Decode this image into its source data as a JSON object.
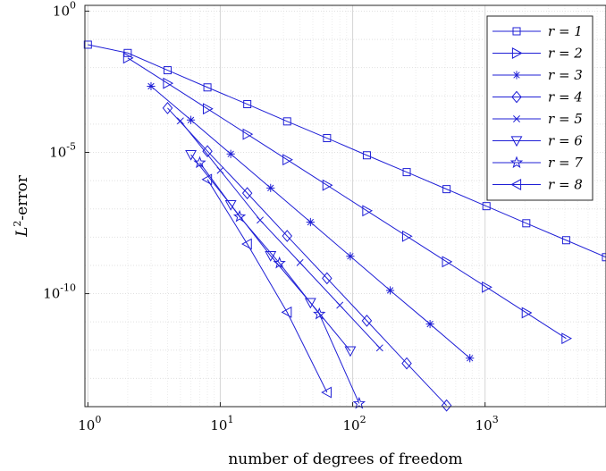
{
  "chart_data": {
    "type": "line",
    "xlabel": "number of degrees of freedom",
    "ylabel_main": "L",
    "ylabel_sup": "2",
    "ylabel_rest": "-error",
    "x_scale": "log",
    "y_scale": "log",
    "xlim": [
      0.95,
      8192
    ],
    "ylim": [
      1e-14,
      1.6
    ],
    "grid": true,
    "legend_position": "top-right",
    "line_color": "#1f1fd6",
    "x_ticks": [
      {
        "value": 1,
        "base": "10",
        "exp": "0"
      },
      {
        "value": 10,
        "base": "10",
        "exp": "1"
      },
      {
        "value": 100,
        "base": "10",
        "exp": "2"
      },
      {
        "value": 1000,
        "base": "10",
        "exp": "3"
      }
    ],
    "y_ticks": [
      {
        "value": 1,
        "base": "10",
        "exp": "0"
      },
      {
        "value": 1e-05,
        "base": "10",
        "exp": "-5"
      },
      {
        "value": 1e-10,
        "base": "10",
        "exp": "-10"
      }
    ],
    "series": [
      {
        "name": "r = 1",
        "marker": "square",
        "x": [
          1,
          2,
          4,
          8,
          16,
          32,
          64,
          128,
          256,
          512,
          1024,
          2048,
          4096,
          8192
        ],
        "y": [
          0.065,
          0.033,
          0.0081,
          0.002,
          0.00051,
          0.000125,
          3.2e-05,
          7.9e-06,
          2e-06,
          5e-07,
          1.25e-07,
          3.1e-08,
          7.8e-09,
          1.95e-09
        ]
      },
      {
        "name": "r = 2",
        "marker": "triangle-right",
        "x": [
          2,
          4,
          8,
          16,
          32,
          64,
          128,
          256,
          512,
          1024,
          2048,
          4096
        ],
        "y": [
          0.022,
          0.0028,
          0.00035,
          4.4e-05,
          5.5e-06,
          6.9e-07,
          8.6e-08,
          1.08e-08,
          1.35e-09,
          1.7e-10,
          2.1e-11,
          2.6e-12
        ]
      },
      {
        "name": "r = 3",
        "marker": "asterisk",
        "x": [
          3,
          6,
          12,
          24,
          48,
          96,
          192,
          384,
          768
        ],
        "y": [
          0.0022,
          0.00014,
          8.8e-06,
          5.5e-07,
          3.4e-08,
          2.1e-09,
          1.3e-10,
          8.4e-12,
          5.2e-13
        ]
      },
      {
        "name": "r = 4",
        "marker": "diamond",
        "x": [
          4,
          8,
          16,
          32,
          64,
          128,
          256,
          512
        ],
        "y": [
          0.00037,
          1.1e-05,
          3.6e-07,
          1.1e-08,
          3.5e-10,
          1.1e-11,
          3.4e-13,
          1.1e-14
        ]
      },
      {
        "name": "r = 5",
        "marker": "x",
        "x": [
          5,
          10,
          20,
          40,
          80,
          160
        ],
        "y": [
          0.00013,
          2.3e-06,
          4e-08,
          1.25e-09,
          3.9e-11,
          1.2e-12
        ]
      },
      {
        "name": "r = 6",
        "marker": "triangle-down",
        "x": [
          6,
          12,
          24,
          48,
          96
        ],
        "y": [
          8.3e-06,
          1.4e-07,
          2.2e-09,
          4.8e-11,
          9.4e-13
        ]
      },
      {
        "name": "r = 7",
        "marker": "star",
        "x": [
          7,
          14,
          28,
          56,
          112
        ],
        "y": [
          4.3e-06,
          5.3e-08,
          1.2e-09,
          1.9e-11,
          1.3e-14
        ]
      },
      {
        "name": "r = 8",
        "marker": "triangle-left",
        "x": [
          8,
          16,
          32,
          64
        ],
        "y": [
          1.1e-06,
          5.7e-09,
          2.2e-11,
          3.2e-14
        ]
      }
    ]
  }
}
